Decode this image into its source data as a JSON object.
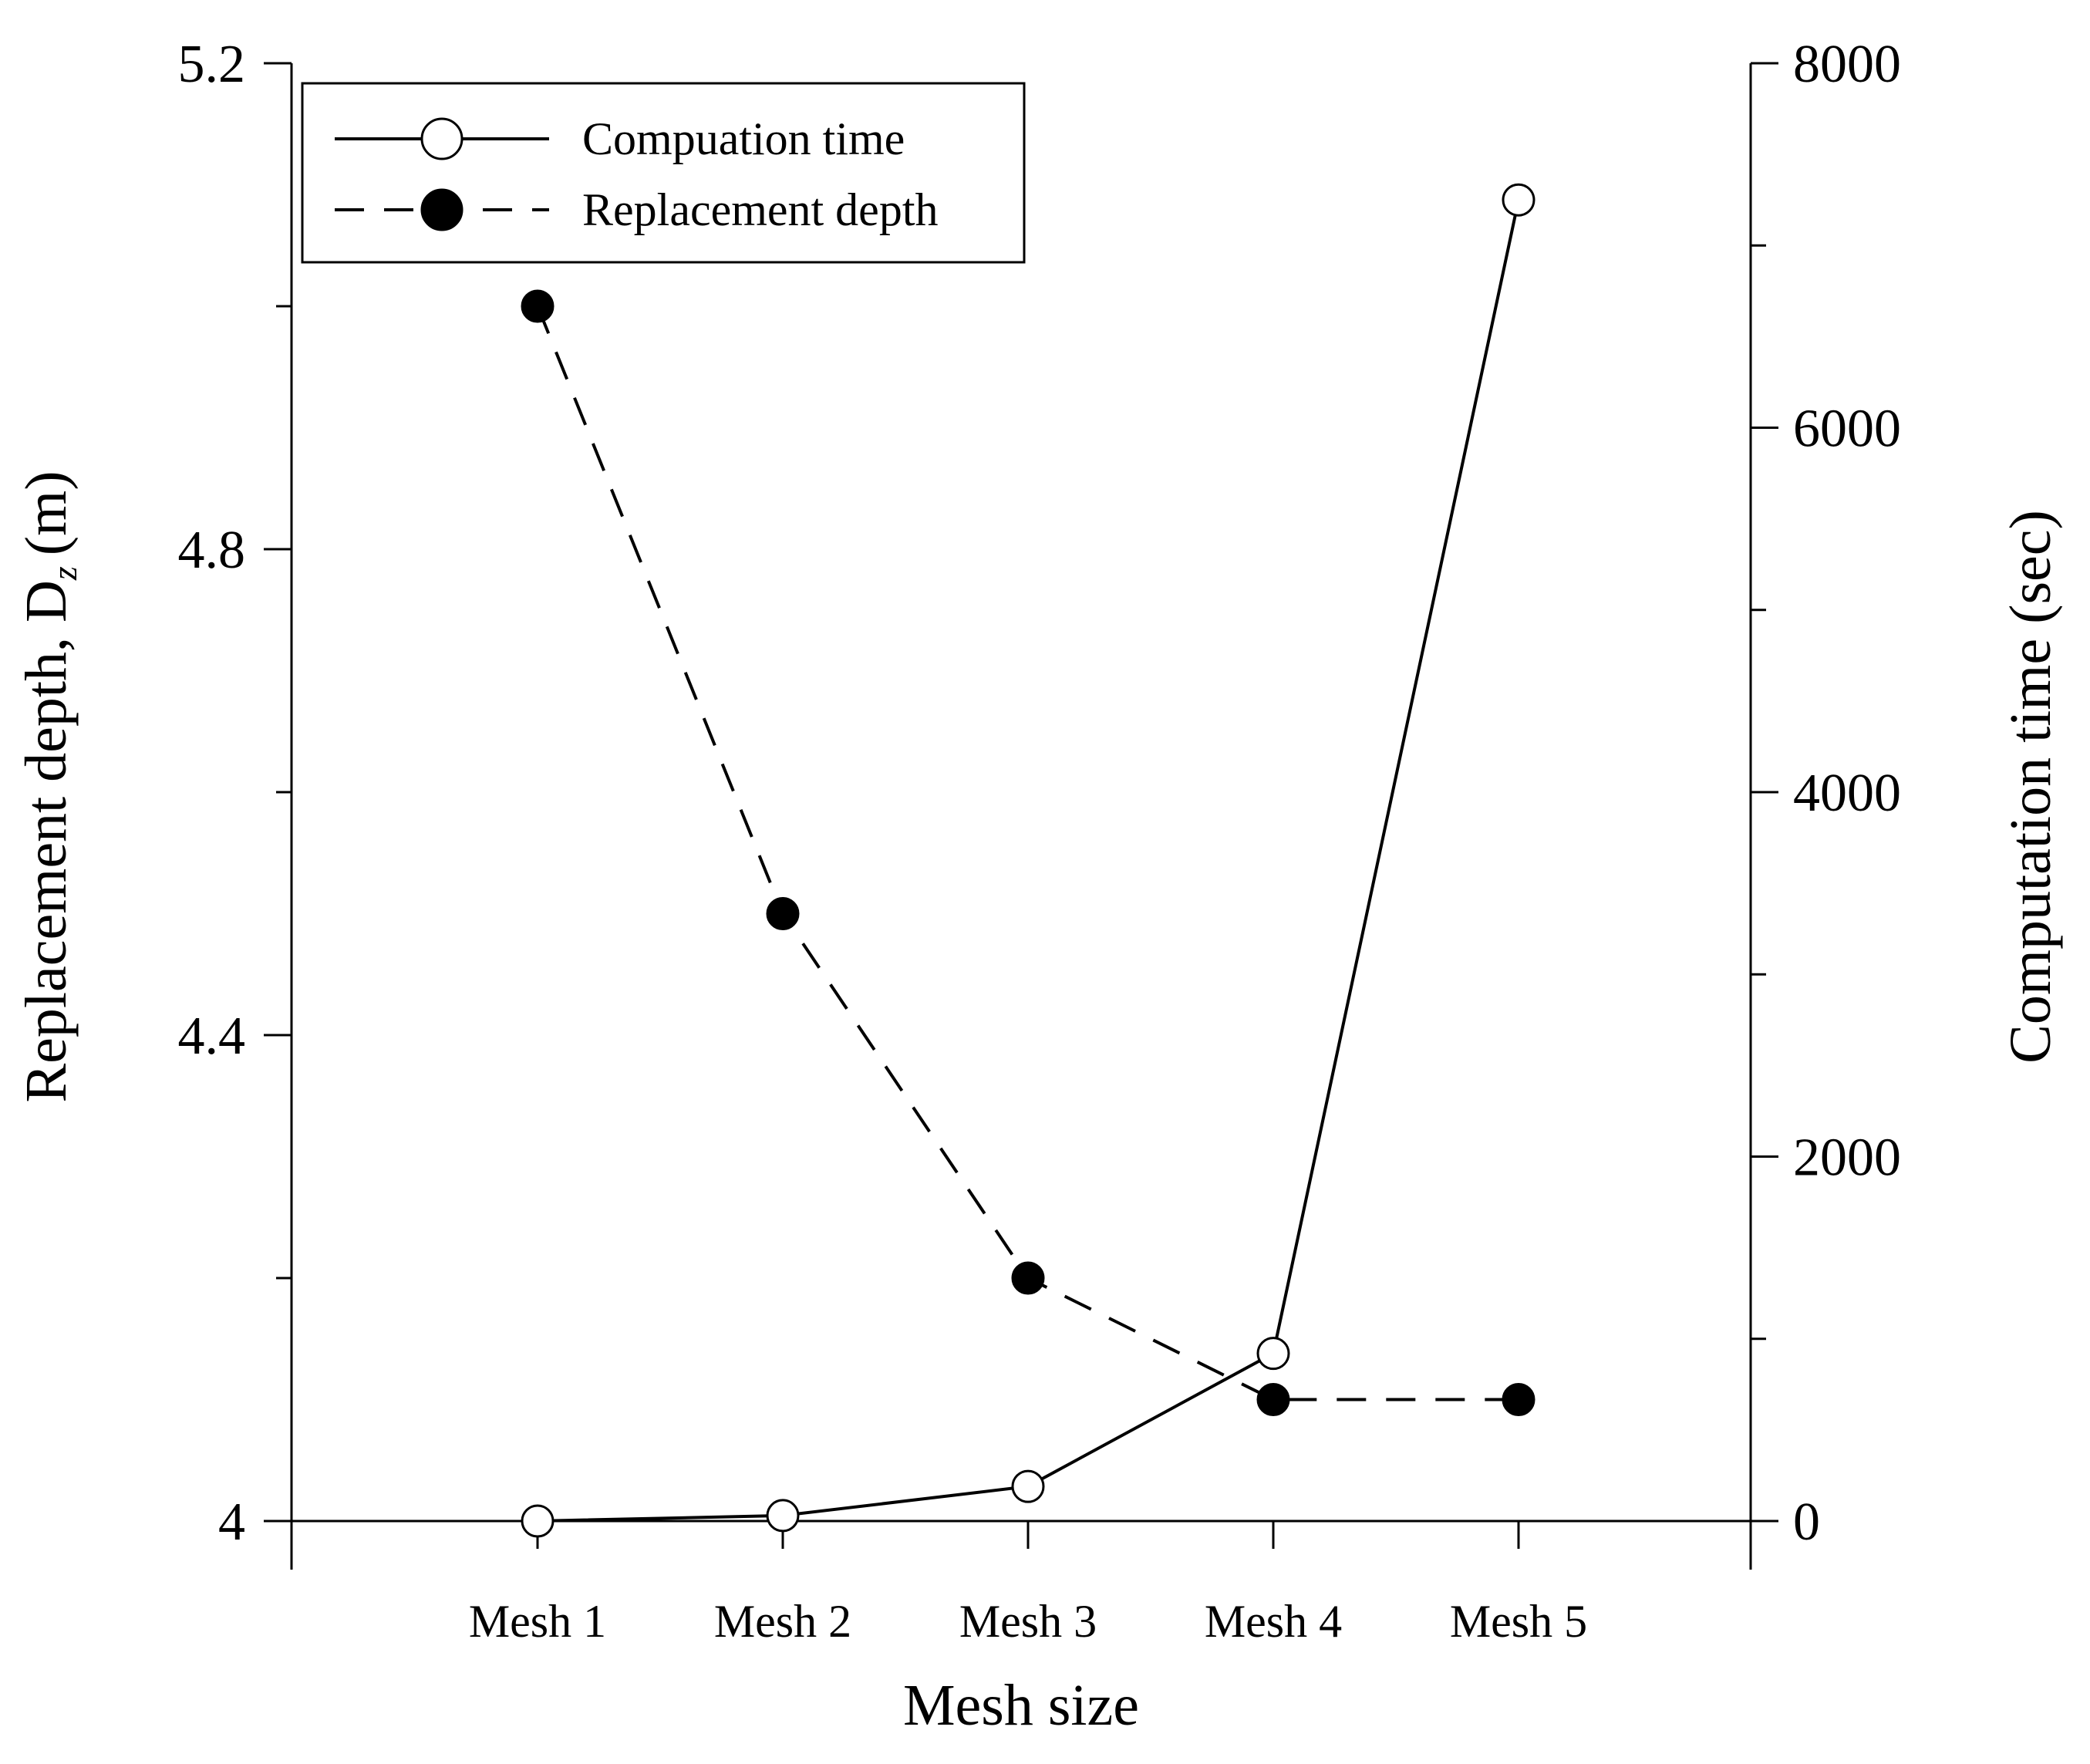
{
  "chart_data": {
    "type": "line",
    "title": "",
    "xlabel": "Mesh size",
    "ylabel": "Replacement depth, D",
    "ylabel_subscript": "z",
    "ylabel_unit": "(m)",
    "y2label": "Computation time (sec)",
    "categories": [
      "Mesh 1",
      "Mesh 2",
      "Mesh 3",
      "Mesh 4",
      "Mesh 5"
    ],
    "ylim": [
      4.0,
      5.2
    ],
    "y_ticks": [
      4.0,
      4.4,
      4.8,
      5.2
    ],
    "y_tick_labels": [
      "4",
      "4.4",
      "4.8",
      "5.2"
    ],
    "y2lim": [
      0,
      8000
    ],
    "y2_ticks": [
      0,
      2000,
      4000,
      6000,
      8000
    ],
    "y2_tick_labels": [
      "0",
      "2000",
      "4000",
      "6000",
      "8000"
    ],
    "legend_position": "top-left",
    "series": [
      {
        "name": "Compuation time",
        "axis": "right",
        "line_style": "solid",
        "marker": "open-circle",
        "values": [
          0,
          30,
          190,
          920,
          7250
        ]
      },
      {
        "name": "Replacement depth",
        "axis": "left",
        "line_style": "dashed",
        "marker": "filled-circle",
        "values": [
          5.0,
          4.5,
          4.2,
          4.1,
          4.1
        ]
      }
    ]
  }
}
